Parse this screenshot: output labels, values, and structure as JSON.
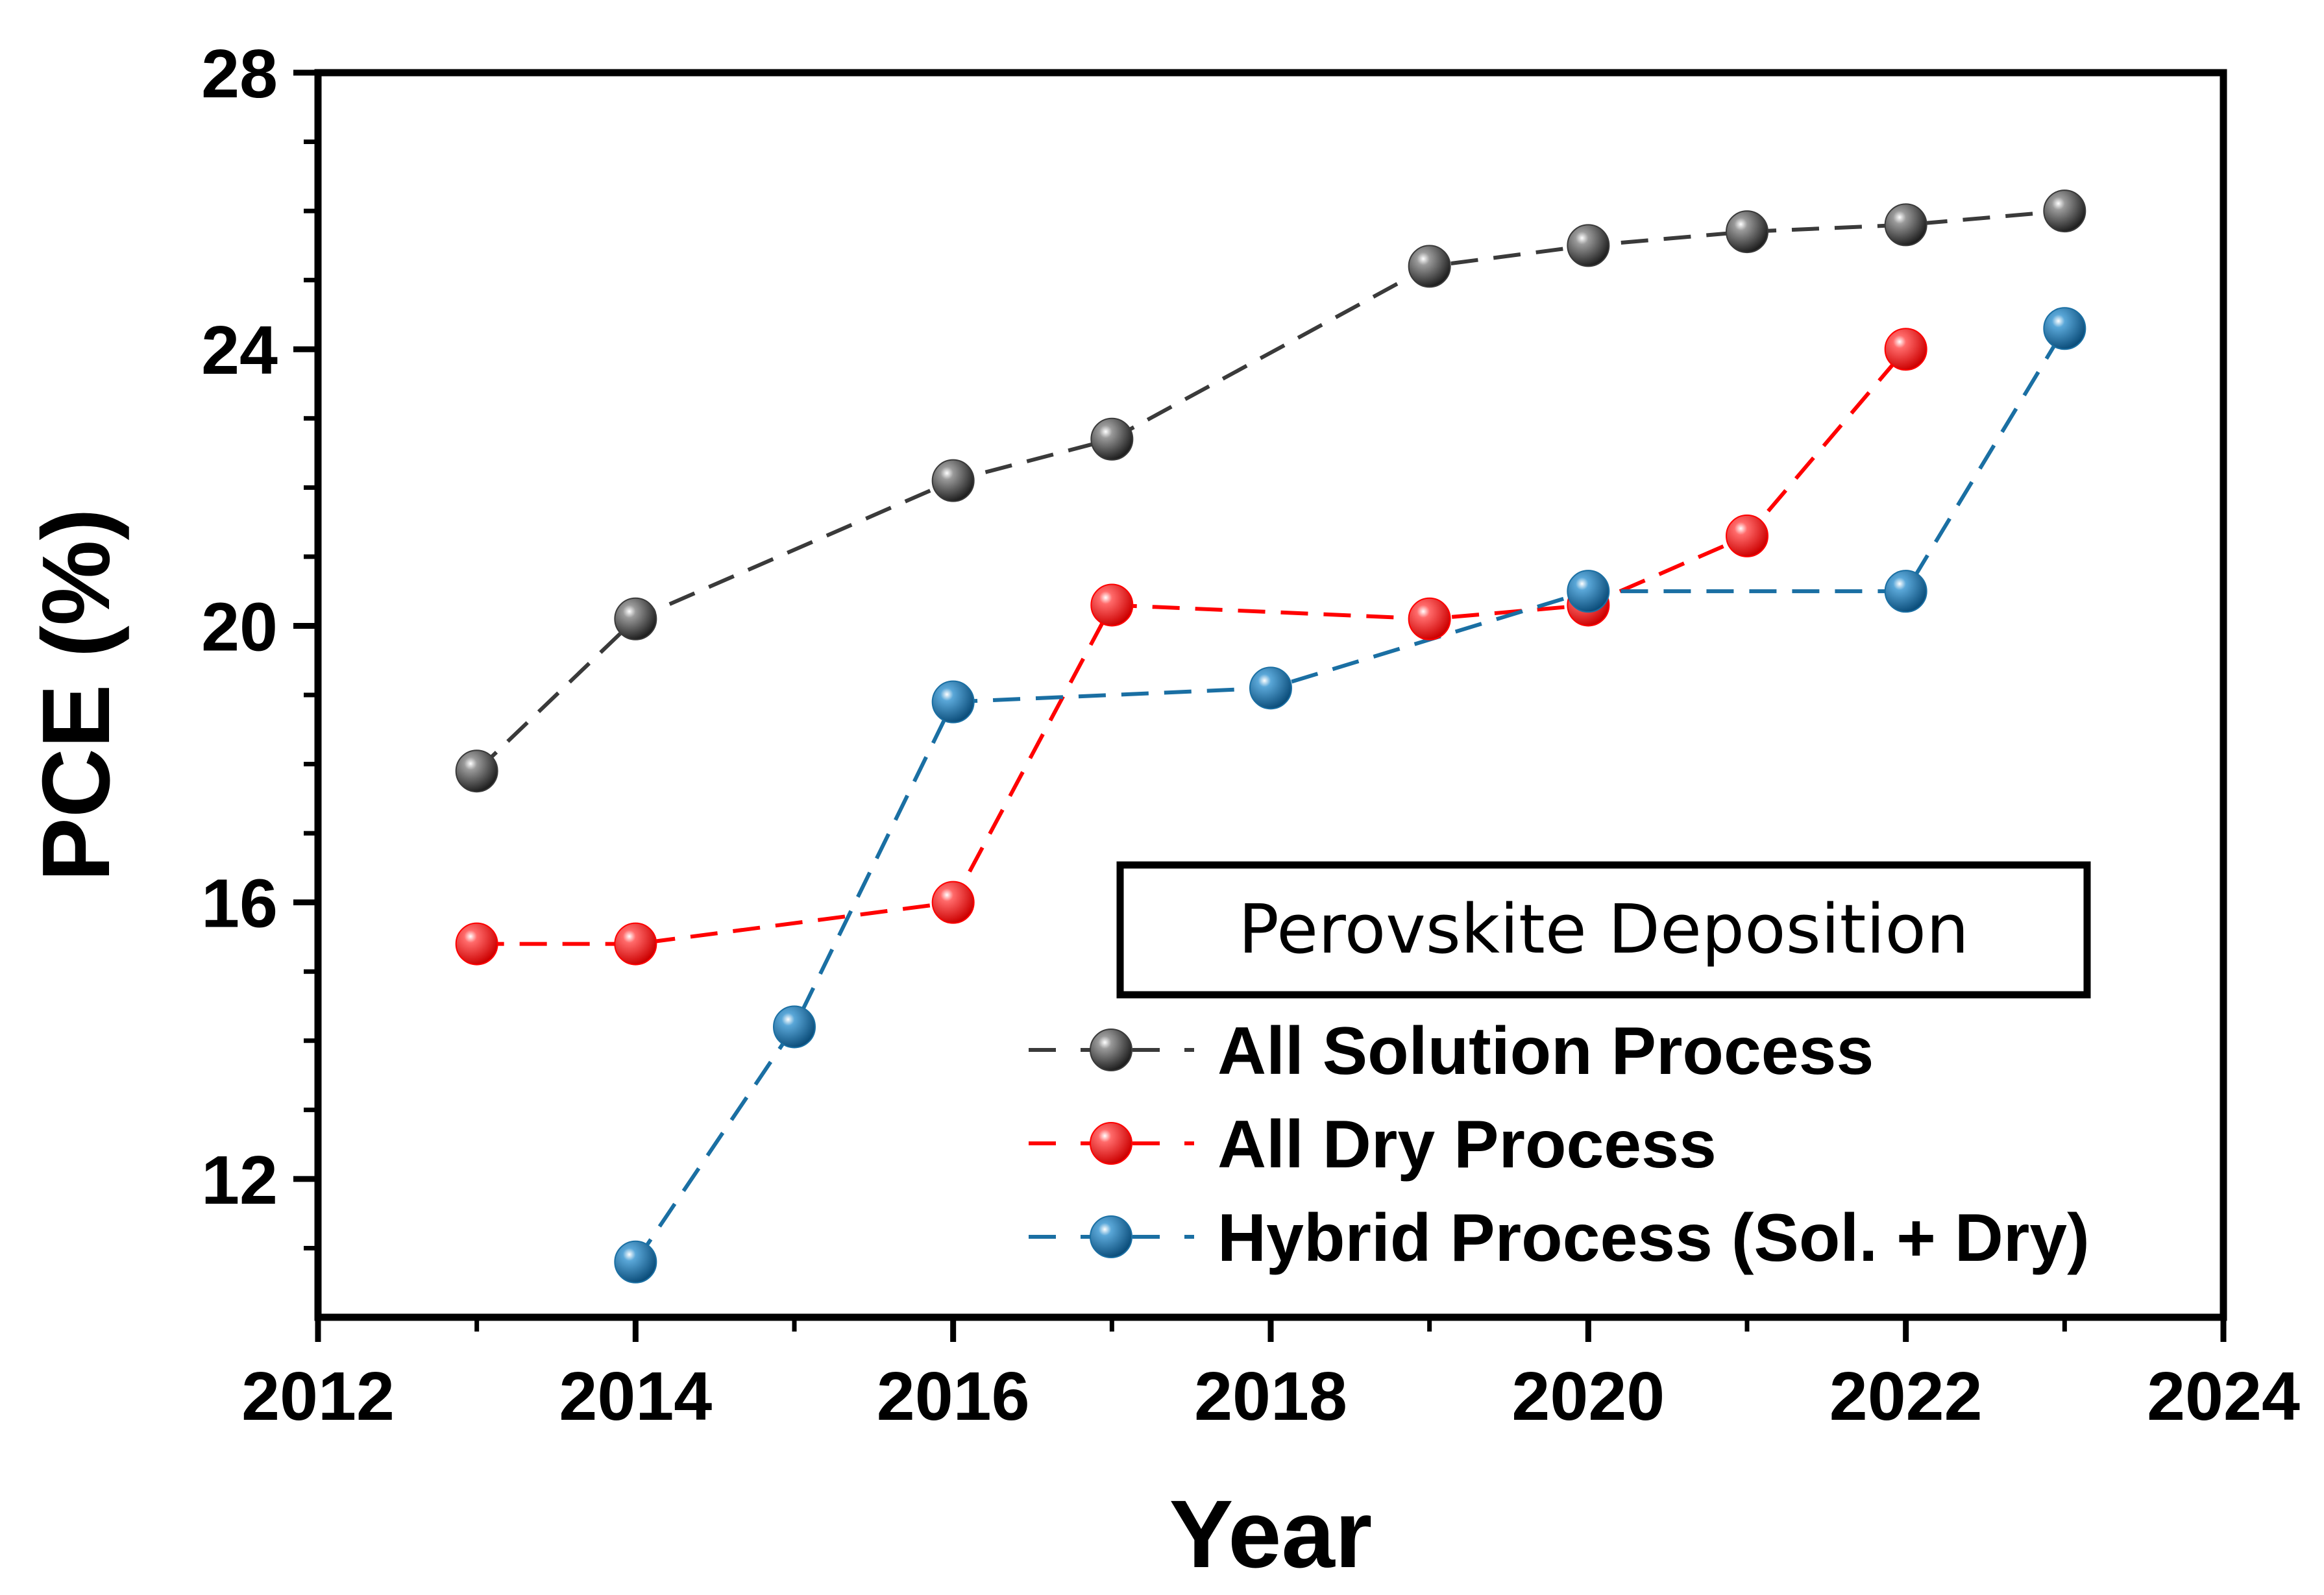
{
  "chart_data": {
    "type": "line",
    "xlabel": "Year",
    "ylabel": "PCE (%)",
    "xlim": [
      2012,
      2024
    ],
    "ylim": [
      10,
      28
    ],
    "x_ticks": [
      2012,
      2014,
      2016,
      2018,
      2020,
      2022,
      2024
    ],
    "y_ticks": [
      12,
      16,
      20,
      24,
      28
    ],
    "legend_title": "Perovskite Deposition",
    "legend_placement": "bottom-right",
    "series": [
      {
        "name": "All Solution Process",
        "color": "#3a3a3a",
        "x": [
          2013,
          2014,
          2016,
          2017,
          2019,
          2020,
          2021,
          2022,
          2023
        ],
        "y": [
          17.9,
          20.1,
          22.1,
          22.7,
          25.2,
          25.5,
          25.7,
          25.8,
          26.0
        ]
      },
      {
        "name": "All Dry Process",
        "color": "#ff0000",
        "x": [
          2013,
          2014,
          2016,
          2017,
          2019,
          2020,
          2021,
          2022
        ],
        "y": [
          15.4,
          15.4,
          16.0,
          20.3,
          20.1,
          20.3,
          21.3,
          24.0
        ]
      },
      {
        "name": "Hybrid Process (Sol. + Dry)",
        "color": "#1a6fa3",
        "x": [
          2014,
          2015,
          2016,
          2018,
          2020,
          2022,
          2023
        ],
        "y": [
          10.8,
          14.2,
          18.9,
          19.1,
          20.5,
          20.5,
          24.3
        ]
      }
    ]
  }
}
